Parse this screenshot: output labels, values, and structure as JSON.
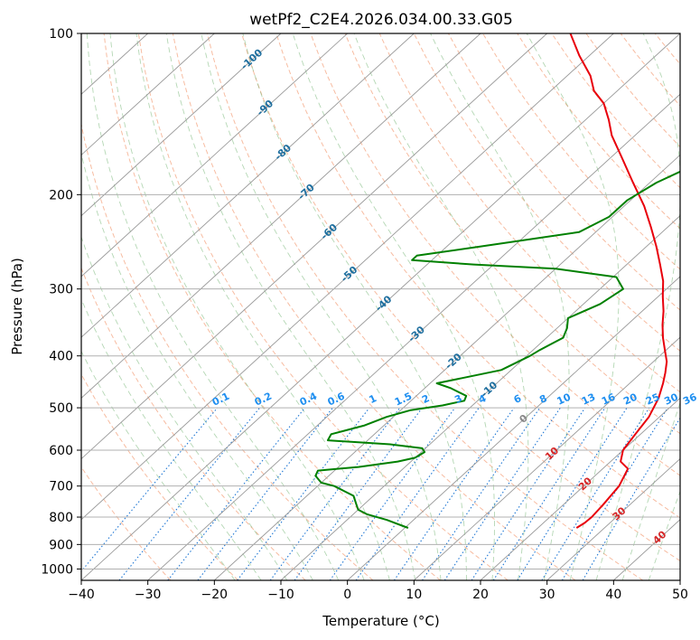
{
  "chart_data": {
    "type": "line",
    "subtype": "skew-t log-p",
    "title": "wetPf2_C2E4.2026.034.00.33.G05",
    "xlabel": "Temperature (°C)",
    "ylabel": "Pressure (hPa)",
    "xlim": [
      -40,
      50
    ],
    "ylim": [
      1050,
      100
    ],
    "y_scale": "log",
    "x_ticks": [
      -40,
      -30,
      -20,
      -10,
      0,
      10,
      20,
      30,
      40,
      50
    ],
    "y_ticks": [
      100,
      200,
      300,
      400,
      500,
      600,
      700,
      800,
      900,
      1000
    ],
    "grid": true,
    "isotherm_labels": [
      {
        "t": -100,
        "p": 112
      },
      {
        "t": -90,
        "p": 138
      },
      {
        "t": -80,
        "p": 167
      },
      {
        "t": -70,
        "p": 198
      },
      {
        "t": -60,
        "p": 235
      },
      {
        "t": -50,
        "p": 282
      },
      {
        "t": -40,
        "p": 320
      },
      {
        "t": -30,
        "p": 365
      },
      {
        "t": -20,
        "p": 410
      },
      {
        "t": -10,
        "p": 463
      }
    ],
    "isotherm_label_zero": {
      "t": 0,
      "p": 525
    },
    "temperature_labels": [
      {
        "text": "10",
        "t": 10,
        "p": 610
      },
      {
        "text": "20",
        "t": 20,
        "p": 695
      },
      {
        "text": "30",
        "t": 30,
        "p": 790
      },
      {
        "text": "40",
        "t": 40,
        "p": 875
      }
    ],
    "mixing_ratio_labels": [
      "0.1",
      "0.2",
      "0.4",
      "0.6",
      "1",
      "1.5",
      "2",
      "3",
      "4",
      "6",
      "8",
      "10",
      "13",
      "16",
      "20",
      "25",
      "30",
      "36"
    ],
    "mixing_ratio_values": [
      0.1,
      0.2,
      0.4,
      0.6,
      1,
      1.5,
      2,
      3,
      4,
      6,
      8,
      10,
      13,
      16,
      20,
      25,
      30,
      36
    ],
    "series": [
      {
        "color": "#e8000b",
        "p": [
          838,
          820,
          800,
          760,
          700,
          650,
          630,
          600,
          560,
          520,
          480,
          450,
          430,
          410,
          390,
          370,
          350,
          330,
          310,
          290,
          270,
          250,
          230,
          210,
          190,
          170,
          155,
          145,
          135,
          128,
          120,
          110,
          100
        ],
        "t": [
          25.8,
          26.2,
          26.3,
          26.0,
          25.3,
          23.8,
          21.5,
          20.0,
          19.2,
          18.4,
          16.8,
          15.0,
          13.6,
          12.0,
          9.8,
          7.5,
          5.3,
          3.2,
          0.7,
          -1.8,
          -5.0,
          -8.5,
          -12.5,
          -17.0,
          -22.5,
          -28.5,
          -33.5,
          -36.5,
          -40.0,
          -43.5,
          -46.5,
          -51.5,
          -56.5
        ]
      },
      {
        "color": "#008000",
        "p": [
          838,
          830,
          810,
          790,
          775,
          760,
          730,
          700,
          690,
          670,
          655,
          645,
          630,
          620,
          605,
          595,
          585,
          575,
          560,
          540,
          520,
          505,
          495,
          485,
          475,
          460,
          450,
          440,
          425,
          400,
          390,
          370,
          355,
          340,
          320,
          300,
          285,
          275,
          270,
          265,
          260,
          250,
          235,
          220,
          205,
          190,
          175,
          160,
          150,
          142,
          133,
          125,
          115,
          105,
          100
        ],
        "t": [
          0.5,
          -0.8,
          -4.0,
          -8.0,
          -10.0,
          -11.0,
          -13.0,
          -17.5,
          -20.0,
          -22.0,
          -22.5,
          -17.0,
          -12.0,
          -10.0,
          -9.5,
          -10.5,
          -16.0,
          -26.0,
          -26.5,
          -23.0,
          -21.0,
          -18.5,
          -14.5,
          -12.0,
          -12.5,
          -16.0,
          -19.0,
          -16.0,
          -11.5,
          -9.5,
          -9.0,
          -7.5,
          -8.5,
          -10.0,
          -7.5,
          -6.5,
          -9.5,
          -20.0,
          -33.0,
          -43.0,
          -43.0,
          -35.0,
          -22.5,
          -20.5,
          -20.5,
          -19.0,
          -16.0,
          -13.0,
          -12.0,
          -13.0,
          -12.5,
          -11.5,
          -10.0,
          -10.0,
          -10.2
        ]
      }
    ]
  }
}
